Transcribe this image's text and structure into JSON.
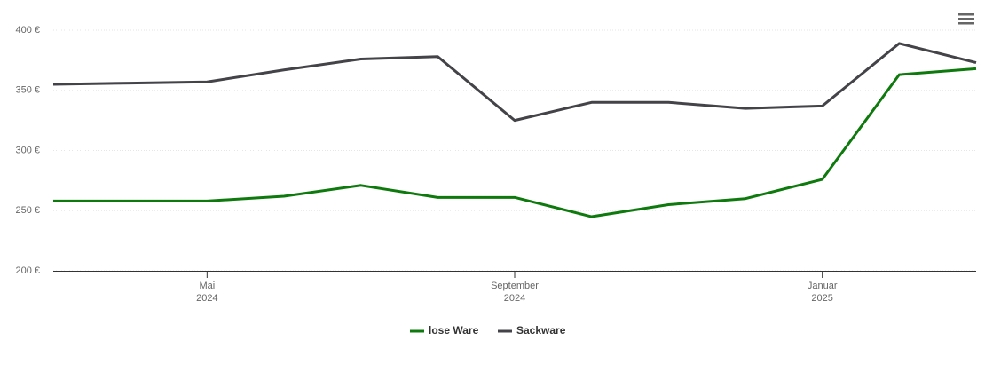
{
  "chart_data": {
    "type": "line",
    "x": [
      "2024-03",
      "2024-04",
      "2024-05",
      "2024-06",
      "2024-07",
      "2024-08",
      "2024-09",
      "2024-10",
      "2024-11",
      "2024-12",
      "2025-01",
      "2025-02",
      "2025-03"
    ],
    "xlim": [
      "2024-03",
      "2025-03"
    ],
    "xticks": [
      {
        "value": "2024-05",
        "label": [
          "Mai",
          "2024"
        ]
      },
      {
        "value": "2024-09",
        "label": [
          "September",
          "2024"
        ]
      },
      {
        "value": "2025-01",
        "label": [
          "Januar",
          "2025"
        ]
      }
    ],
    "ylim": [
      200,
      400
    ],
    "yticks": [
      {
        "value": 200,
        "label": "200 €"
      },
      {
        "value": 250,
        "label": "250 €"
      },
      {
        "value": 300,
        "label": "300 €"
      },
      {
        "value": 350,
        "label": "350 €"
      },
      {
        "value": 400,
        "label": "400 €"
      }
    ],
    "grid": true,
    "series": [
      {
        "name": "lose Ware",
        "color": "#0e7a0d",
        "values": [
          258,
          258,
          258,
          262,
          271,
          261,
          261,
          245,
          255,
          260,
          276,
          363,
          368
        ]
      },
      {
        "name": "Sackware",
        "color": "#434348",
        "values": [
          355,
          356,
          357,
          367,
          376,
          378,
          325,
          340,
          340,
          335,
          337,
          389,
          373
        ]
      }
    ]
  }
}
